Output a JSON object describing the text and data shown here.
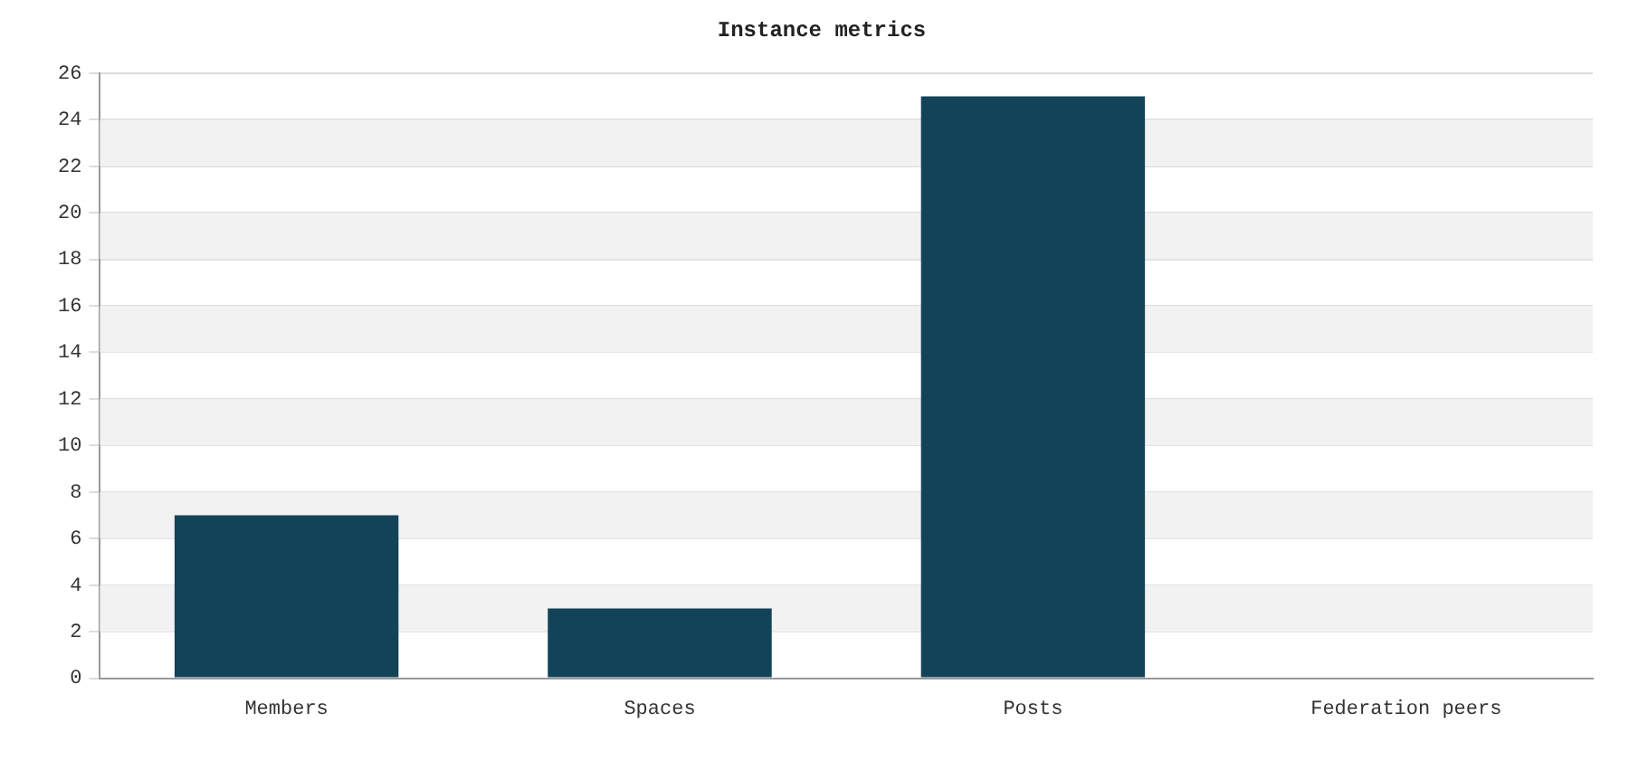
{
  "chart_data": {
    "type": "bar",
    "title": "Instance metrics",
    "categories": [
      "Members",
      "Spaces",
      "Posts",
      "Federation peers"
    ],
    "values": [
      7,
      3,
      25,
      0
    ],
    "color": "#134359",
    "ylim": [
      0,
      26
    ],
    "yticks": [
      0,
      2,
      4,
      6,
      8,
      10,
      12,
      14,
      16,
      18,
      20,
      22,
      24,
      26
    ],
    "grid": "y",
    "legend": false
  }
}
